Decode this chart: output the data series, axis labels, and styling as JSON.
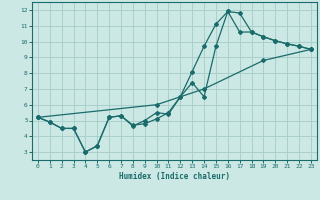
{
  "xlabel": "Humidex (Indice chaleur)",
  "bg_color": "#cce8e4",
  "grid_color": "#aacfcb",
  "line_color": "#1a6b6b",
  "xlim": [
    -0.5,
    23.5
  ],
  "ylim": [
    2.5,
    12.5
  ],
  "xticks": [
    0,
    1,
    2,
    3,
    4,
    5,
    6,
    7,
    8,
    9,
    10,
    11,
    12,
    13,
    14,
    15,
    16,
    17,
    18,
    19,
    20,
    21,
    22,
    23
  ],
  "yticks": [
    3,
    4,
    5,
    6,
    7,
    8,
    9,
    10,
    11,
    12
  ],
  "curve_a_x": [
    0,
    1,
    2,
    3,
    4,
    5,
    6,
    7,
    8,
    9,
    10,
    11,
    12,
    13,
    14,
    15,
    16,
    17,
    18,
    19,
    20,
    21,
    22,
    23
  ],
  "curve_a_y": [
    5.2,
    4.9,
    4.5,
    4.5,
    3.0,
    3.4,
    5.2,
    5.3,
    4.7,
    4.8,
    5.1,
    5.5,
    6.5,
    8.1,
    9.7,
    11.1,
    11.9,
    11.8,
    10.6,
    10.3,
    10.05,
    9.85,
    9.7,
    9.5
  ],
  "curve_b_x": [
    0,
    1,
    2,
    3,
    4,
    5,
    6,
    7,
    8,
    9,
    10,
    11,
    12,
    13,
    14,
    15,
    16,
    17,
    18,
    19,
    20,
    21,
    22,
    23
  ],
  "curve_b_y": [
    5.2,
    4.9,
    4.5,
    4.5,
    3.0,
    3.4,
    5.2,
    5.3,
    4.65,
    5.0,
    5.5,
    5.4,
    6.5,
    7.4,
    6.5,
    9.7,
    11.9,
    10.6,
    10.6,
    10.3,
    10.05,
    9.85,
    9.7,
    9.5
  ],
  "curve_c_x": [
    0,
    10,
    14,
    19,
    23
  ],
  "curve_c_y": [
    5.2,
    6.0,
    7.0,
    8.8,
    9.5
  ]
}
